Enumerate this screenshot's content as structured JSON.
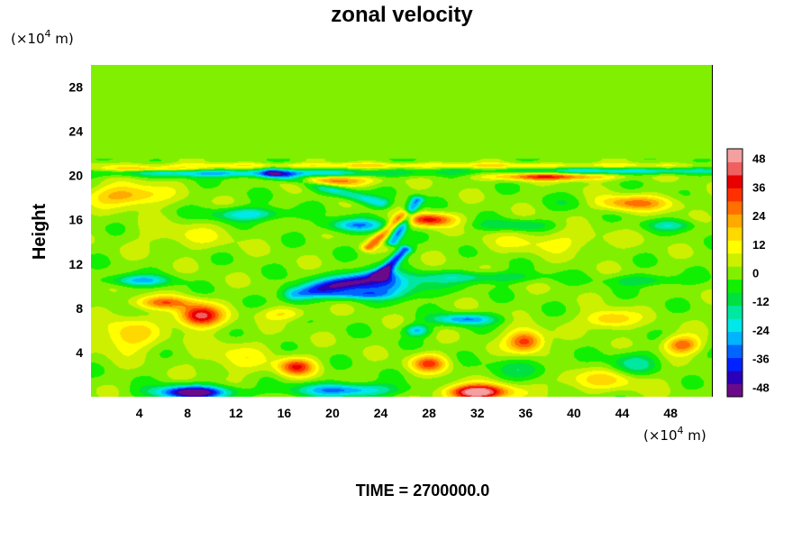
{
  "chart_data": {
    "type": "heatmap",
    "title": "zonal velocity",
    "ylabel": "Height",
    "xlabel": "",
    "x_unit": {
      "prefix": "(×10",
      "exp": "4",
      "suffix": " m)"
    },
    "y_unit": {
      "prefix": "(×10",
      "exp": "4",
      "suffix": " m)"
    },
    "xlim": [
      0,
      51.5
    ],
    "ylim": [
      0,
      30
    ],
    "x_ticks": [
      "4",
      "8",
      "12",
      "16",
      "20",
      "24",
      "28",
      "32",
      "36",
      "40",
      "44",
      "48"
    ],
    "y_ticks": [
      "4",
      "8",
      "12",
      "16",
      "20",
      "24",
      "28"
    ],
    "colorbar": {
      "range": [
        -52,
        52
      ],
      "ticks": [
        "48",
        "36",
        "24",
        "12",
        "0",
        "-12",
        "-24",
        "-36",
        "-48"
      ],
      "colors": [
        "#6a0a8a",
        "#2a00b8",
        "#0022ff",
        "#0066ff",
        "#00b4ff",
        "#00e8e8",
        "#00e8a0",
        "#00e040",
        "#10f000",
        "#80f000",
        "#ccf000",
        "#ffff00",
        "#ffd800",
        "#ffaa00",
        "#ff7000",
        "#ff3000",
        "#e80000",
        "#f06060",
        "#f5a0a0"
      ]
    },
    "features": [
      {
        "x": 26,
        "y": 24.5,
        "sx": 30,
        "sy": 2.5,
        "v": -1
      },
      {
        "x": 5,
        "y": 20.6,
        "sx": 4,
        "sy": 0.2,
        "v": 20
      },
      {
        "x": 26,
        "y": 20.9,
        "sx": 30,
        "sy": 0.25,
        "v": 14
      },
      {
        "x": 14,
        "y": 20.2,
        "sx": 12,
        "sy": 0.35,
        "v": -28
      },
      {
        "x": 44,
        "y": 20.4,
        "sx": 10,
        "sy": 0.3,
        "v": -24
      },
      {
        "x": 20,
        "y": 19.5,
        "sx": 3,
        "sy": 0.5,
        "v": 32
      },
      {
        "x": 38,
        "y": 19.9,
        "sx": 5,
        "sy": 0.35,
        "v": 34
      },
      {
        "x": 44,
        "y": 17.5,
        "sx": 4,
        "sy": 0.7,
        "v": 30
      },
      {
        "x": 28,
        "y": 16,
        "sx": 2,
        "sy": 0.6,
        "v": 38
      },
      {
        "x": 3,
        "y": 18.2,
        "sx": 3,
        "sy": 1,
        "v": 24
      },
      {
        "x": 13,
        "y": 16.5,
        "sx": 3,
        "sy": 0.6,
        "v": -24
      },
      {
        "x": 41,
        "y": 17.5,
        "sx": 3,
        "sy": 0.7,
        "v": -16
      },
      {
        "x": 22,
        "y": 15.5,
        "sx": 2.5,
        "sy": 0.6,
        "v": -28
      },
      {
        "x": 35,
        "y": 15.5,
        "sx": 3,
        "sy": 0.5,
        "v": -14
      },
      {
        "x": 48,
        "y": 15.5,
        "sx": 2,
        "sy": 0.5,
        "v": -16
      },
      {
        "x": 8,
        "y": 14.5,
        "sx": 4,
        "sy": 1.2,
        "v": 8
      },
      {
        "x": 38,
        "y": 14,
        "sx": 5,
        "sy": 1,
        "v": 10
      },
      {
        "x": 4,
        "y": 10.5,
        "sx": 2.5,
        "sy": 0.5,
        "v": -26
      },
      {
        "x": 24,
        "y": 10,
        "sx": 4,
        "sy": 1,
        "v": -30
      },
      {
        "x": 22,
        "y": 9.2,
        "sx": 3,
        "sy": 0.4,
        "v": -18
      },
      {
        "x": 32,
        "y": 10.8,
        "sx": 5,
        "sy": 0.5,
        "v": -16
      },
      {
        "x": 46,
        "y": 10.5,
        "sx": 3,
        "sy": 0.5,
        "v": -14
      },
      {
        "x": 9,
        "y": 7.3,
        "sx": 1.8,
        "sy": 1,
        "v": 44
      },
      {
        "x": 6,
        "y": 8.5,
        "sx": 2.5,
        "sy": 0.6,
        "v": 26
      },
      {
        "x": 3,
        "y": 5.5,
        "sx": 2.5,
        "sy": 1.5,
        "v": 18
      },
      {
        "x": 36,
        "y": 5,
        "sx": 1.5,
        "sy": 1,
        "v": 36
      },
      {
        "x": 49,
        "y": 4.7,
        "sx": 1.5,
        "sy": 0.8,
        "v": 30
      },
      {
        "x": 31,
        "y": 7,
        "sx": 2.5,
        "sy": 0.5,
        "v": -30
      },
      {
        "x": 27,
        "y": 6,
        "sx": 1,
        "sy": 0.5,
        "v": -26
      },
      {
        "x": 43,
        "y": 7,
        "sx": 2,
        "sy": 0.8,
        "v": 22
      },
      {
        "x": 16,
        "y": 7.5,
        "sx": 2,
        "sy": 0.6,
        "v": 14
      },
      {
        "x": 17,
        "y": 2.7,
        "sx": 1.5,
        "sy": 0.8,
        "v": 34
      },
      {
        "x": 28,
        "y": 3,
        "sx": 1.5,
        "sy": 0.8,
        "v": 30
      },
      {
        "x": 32,
        "y": 0.4,
        "sx": 2.5,
        "sy": 0.7,
        "v": 56
      },
      {
        "x": 8.5,
        "y": 0.4,
        "sx": 3,
        "sy": 0.6,
        "v": -55
      },
      {
        "x": 21,
        "y": 0.6,
        "sx": 4,
        "sy": 0.6,
        "v": -32
      },
      {
        "x": 42,
        "y": 1.5,
        "sx": 4,
        "sy": 1,
        "v": 14
      },
      {
        "x": 12,
        "y": 3.5,
        "sx": 3,
        "sy": 1.5,
        "v": 10
      },
      {
        "x": 45,
        "y": 3,
        "sx": 2,
        "sy": 1,
        "v": -16
      },
      {
        "x": 36,
        "y": 2.5,
        "sx": 3,
        "sy": 1,
        "v": -10
      }
    ],
    "ridges": [
      {
        "x1": 17,
        "y1": 9.3,
        "x2": 24,
        "y2": 11,
        "sw": 1.2,
        "v": -32
      },
      {
        "x1": 24,
        "y1": 11,
        "x2": 26,
        "y2": 13.3,
        "sw": 0.6,
        "v": -36
      },
      {
        "x1": 23,
        "y1": 13.5,
        "x2": 26,
        "y2": 16.5,
        "sw": 0.6,
        "v": 26
      },
      {
        "x1": 25,
        "y1": 14,
        "x2": 27,
        "y2": 17.8,
        "sw": 0.6,
        "v": -30
      },
      {
        "x1": 15,
        "y1": 20.2,
        "x2": 24,
        "y2": 17.5,
        "sw": 0.8,
        "v": -22
      }
    ]
  },
  "footer": {
    "time_label": "TIME = 2700000.0"
  }
}
